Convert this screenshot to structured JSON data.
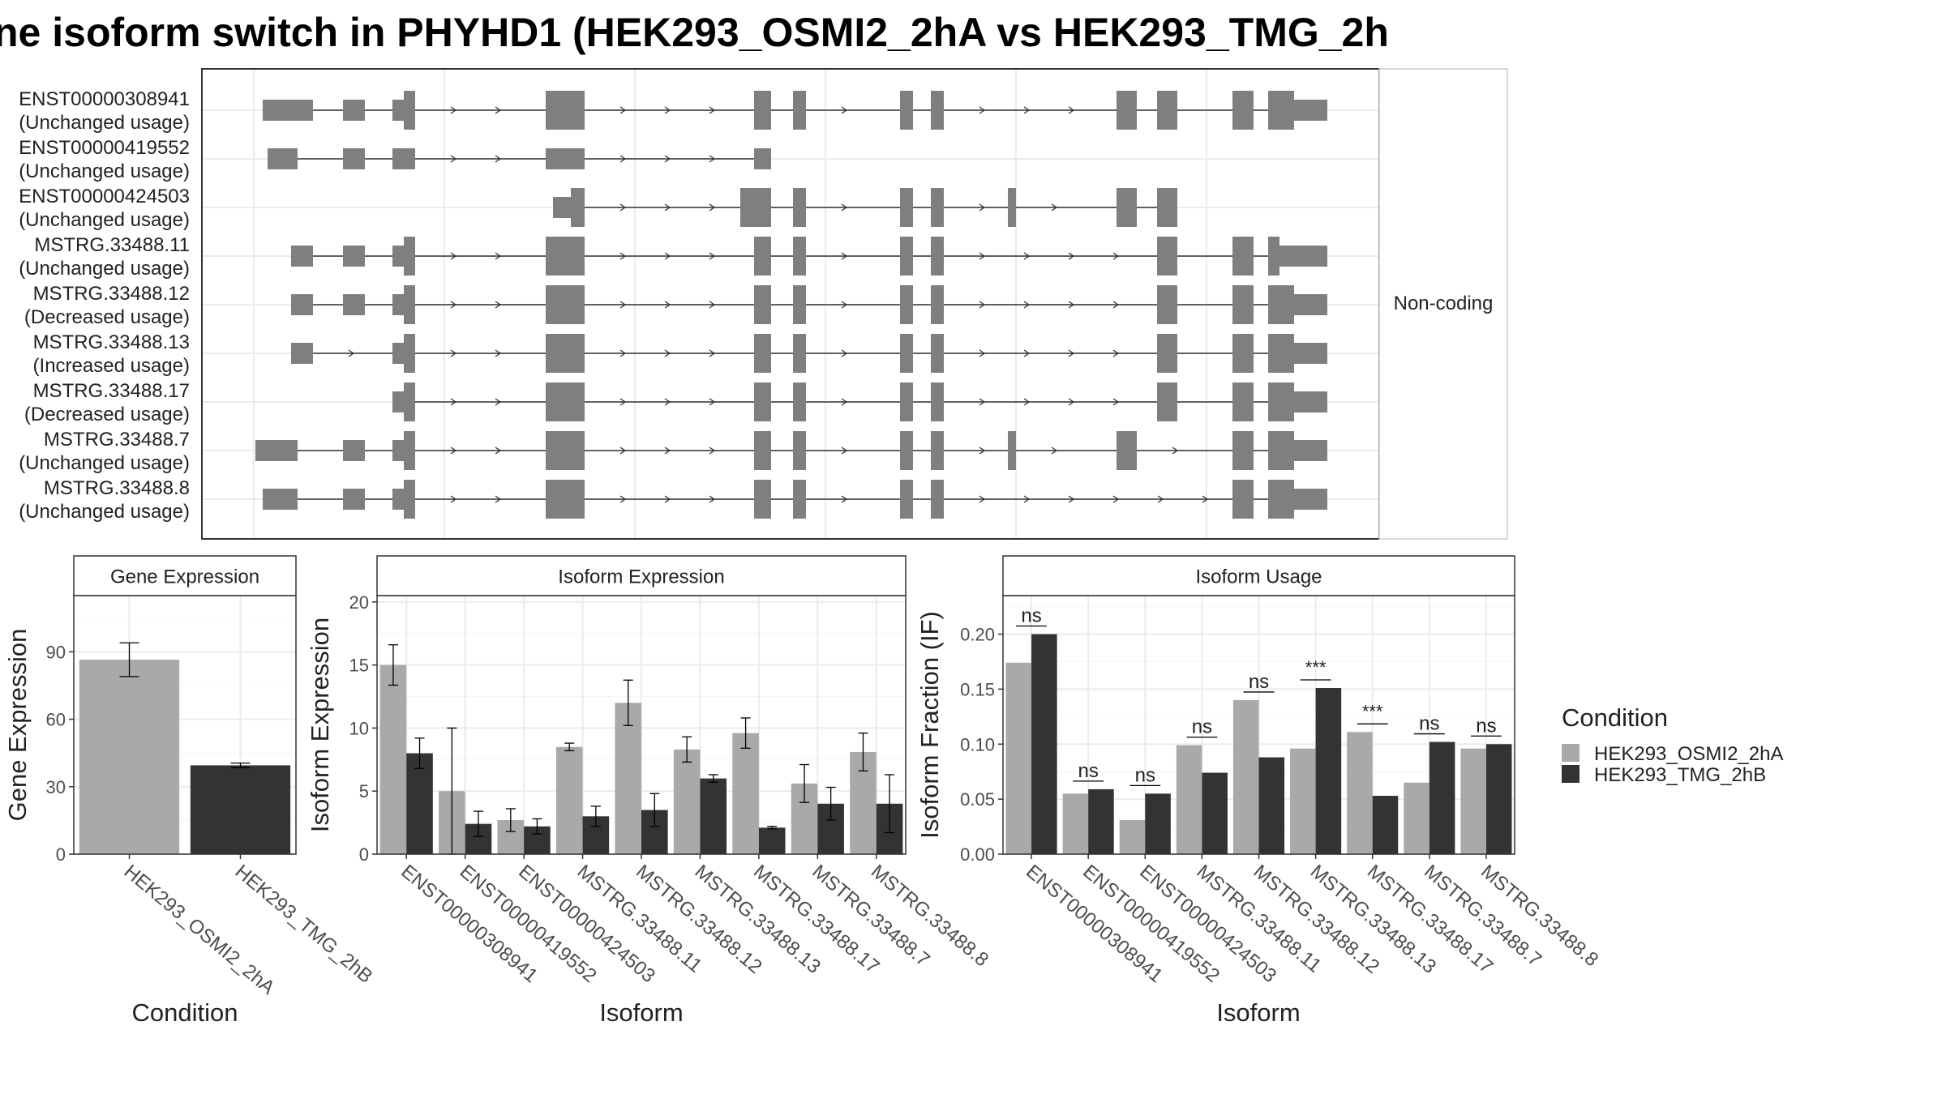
{
  "title": "ne isoform switch in PHYHD1 (HEK293_OSMI2_2hA vs HEK293_TMG_2h",
  "colors": {
    "cond_a": "#a9a9a9",
    "cond_b": "#333333",
    "exon": "#7f7f7f"
  },
  "structure": {
    "strip_label": "Non-coding",
    "isoforms": [
      {
        "id": "ENST00000308941",
        "usage": "(Unchanged usage)"
      },
      {
        "id": "ENST00000419552",
        "usage": "(Unchanged usage)"
      },
      {
        "id": "ENST00000424503",
        "usage": "(Unchanged usage)"
      },
      {
        "id": "MSTRG.33488.11",
        "usage": "(Unchanged usage)"
      },
      {
        "id": "MSTRG.33488.12",
        "usage": "(Decreased usage)"
      },
      {
        "id": "MSTRG.33488.13",
        "usage": "(Increased usage)"
      },
      {
        "id": "MSTRG.33488.17",
        "usage": "(Decreased usage)"
      },
      {
        "id": "MSTRG.33488.7",
        "usage": "(Unchanged usage)"
      },
      {
        "id": "MSTRG.33488.8",
        "usage": "(Unchanged usage)"
      }
    ]
  },
  "legend": {
    "title": "Condition",
    "items": [
      "HEK293_OSMI2_2hA",
      "HEK293_TMG_2hB"
    ]
  },
  "chart_data": [
    {
      "type": "bar",
      "panel": "Gene Expression",
      "xlabel": "Condition",
      "ylabel": "Gene Expression",
      "ylim": [
        0,
        115
      ],
      "yticks": [
        0,
        30,
        60,
        90
      ],
      "categories": [
        "HEK293_OSMI2_2hA",
        "HEK293_TMG_2hB"
      ],
      "values": [
        86.5,
        39.5
      ],
      "errors": [
        [
          79,
          94
        ],
        [
          38.5,
          40.5
        ]
      ]
    },
    {
      "type": "bar",
      "panel": "Isoform Expression",
      "xlabel": "Isoform",
      "ylabel": "Isoform Expression",
      "ylim": [
        0,
        20.5
      ],
      "yticks": [
        0,
        5,
        10,
        15,
        20
      ],
      "categories": [
        "ENST00000308941",
        "ENST00000419552",
        "ENST00000424503",
        "MSTRG.33488.11",
        "MSTRG.33488.12",
        "MSTRG.33488.13",
        "MSTRG.33488.17",
        "MSTRG.33488.7",
        "MSTRG.33488.8"
      ],
      "series": [
        {
          "name": "HEK293_OSMI2_2hA",
          "values": [
            15,
            5,
            2.7,
            8.5,
            12,
            8.3,
            9.6,
            5.6,
            8.1
          ],
          "errors": [
            [
              13.4,
              16.6
            ],
            [
              0,
              10
            ],
            [
              1.8,
              3.6
            ],
            [
              8.2,
              8.8
            ],
            [
              10.2,
              13.8
            ],
            [
              7.3,
              9.3
            ],
            [
              8.4,
              10.8
            ],
            [
              4.1,
              7.1
            ],
            [
              6.6,
              9.6
            ]
          ]
        },
        {
          "name": "HEK293_TMG_2hB",
          "values": [
            8,
            2.4,
            2.2,
            3,
            3.5,
            6,
            2.1,
            4,
            4
          ],
          "errors": [
            [
              6.8,
              9.2
            ],
            [
              1.4,
              3.4
            ],
            [
              1.6,
              2.8
            ],
            [
              2.2,
              3.8
            ],
            [
              2.2,
              4.8
            ],
            [
              5.7,
              6.3
            ],
            [
              2,
              2.2
            ],
            [
              2.7,
              5.3
            ],
            [
              1.7,
              6.3
            ]
          ]
        }
      ]
    },
    {
      "type": "bar",
      "panel": "Isoform Usage",
      "xlabel": "Isoform",
      "ylabel": "Isoform Fraction (IF)",
      "ylim": [
        0,
        0.235
      ],
      "yticks": [
        "0.00",
        "0.05",
        "0.10",
        "0.15",
        "0.20"
      ],
      "categories": [
        "ENST00000308941",
        "ENST00000419552",
        "ENST00000424503",
        "MSTRG.33488.11",
        "MSTRG.33488.12",
        "MSTRG.33488.13",
        "MSTRG.33488.17",
        "MSTRG.33488.7",
        "MSTRG.33488.8"
      ],
      "series": [
        {
          "name": "HEK293_OSMI2_2hA",
          "values": [
            0.174,
            0.055,
            0.031,
            0.099,
            0.14,
            0.096,
            0.111,
            0.065,
            0.096
          ]
        },
        {
          "name": "HEK293_TMG_2hB",
          "values": [
            0.2,
            0.059,
            0.055,
            0.074,
            0.088,
            0.151,
            0.053,
            0.102,
            0.1
          ]
        }
      ],
      "significance": [
        "ns",
        "ns",
        "ns",
        "ns",
        "ns",
        "***",
        "***",
        "ns",
        "ns"
      ]
    }
  ]
}
